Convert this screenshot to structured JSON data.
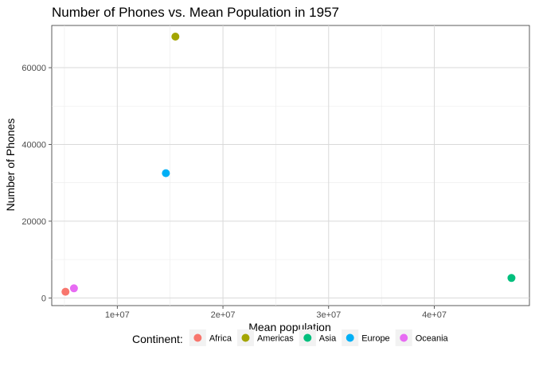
{
  "chart_data": {
    "type": "scatter",
    "title": "Number of Phones vs. Mean Population in 1957",
    "xlabel": "Mean population",
    "ylabel": "Number of Phones",
    "xlim": [
      3800000,
      49000000
    ],
    "ylim": [
      -2000,
      71000
    ],
    "x_ticks": [
      10000000,
      20000000,
      30000000,
      40000000
    ],
    "x_tick_labels": [
      "1e+07",
      "2e+07",
      "3e+07",
      "4e+07"
    ],
    "y_ticks": [
      0,
      20000,
      40000,
      60000
    ],
    "y_tick_labels": [
      "0",
      "20000",
      "40000",
      "60000"
    ],
    "grid": true,
    "legend_title": "Continent:",
    "legend_position": "bottom",
    "series": [
      {
        "name": "Africa",
        "color": "#F8766D",
        "x": [
          5100000
        ],
        "y": [
          1600
        ]
      },
      {
        "name": "Americas",
        "color": "#A3A500",
        "x": [
          15500000
        ],
        "y": [
          68100
        ]
      },
      {
        "name": "Asia",
        "color": "#00BF7D",
        "x": [
          47300000
        ],
        "y": [
          5200
        ]
      },
      {
        "name": "Europe",
        "color": "#00B0F6",
        "x": [
          14600000
        ],
        "y": [
          32500
        ]
      },
      {
        "name": "Oceania",
        "color": "#E76BF3",
        "x": [
          5900000
        ],
        "y": [
          2500
        ]
      }
    ]
  }
}
